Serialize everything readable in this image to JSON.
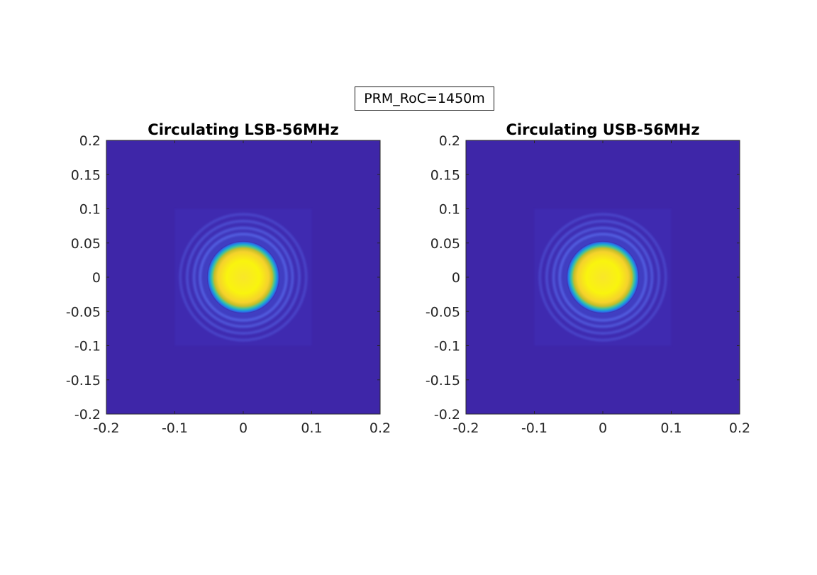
{
  "figure": {
    "annotation": "PRM_RoC=1450m"
  },
  "colors": {
    "background": "#3e26a8",
    "peak": "#f9fb0e",
    "colormap": "parula"
  },
  "chart_data": [
    {
      "type": "heatmap",
      "title": "Circulating LSB-56MHz",
      "xlabel": "",
      "ylabel": "",
      "xlim": [
        -0.2,
        0.2
      ],
      "ylim": [
        -0.2,
        0.2
      ],
      "xticks": [
        "-0.2",
        "-0.1",
        "0",
        "0.1",
        "0.2"
      ],
      "yticks": [
        "0.2",
        "0.15",
        "0.1",
        "0.05",
        "0",
        "-0.05",
        "-0.1",
        "-0.15",
        "-0.2"
      ],
      "grid": false,
      "description_values": {
        "beam_center": [
          0,
          0
        ],
        "beam_radius": 0.05,
        "aperture_halfwidth": 0.1,
        "normalized_peak": 1.0
      }
    },
    {
      "type": "heatmap",
      "title": "Circulating USB-56MHz",
      "xlabel": "",
      "ylabel": "",
      "xlim": [
        -0.2,
        0.2
      ],
      "ylim": [
        -0.2,
        0.2
      ],
      "xticks": [
        "-0.2",
        "-0.1",
        "0",
        "0.1",
        "0.2"
      ],
      "yticks": [
        "0.2",
        "0.15",
        "0.1",
        "0.05",
        "0",
        "-0.05",
        "-0.1",
        "-0.15",
        "-0.2"
      ],
      "grid": false,
      "description_values": {
        "beam_center": [
          0,
          0
        ],
        "beam_radius": 0.05,
        "aperture_halfwidth": 0.1,
        "normalized_peak": 1.0
      }
    }
  ]
}
